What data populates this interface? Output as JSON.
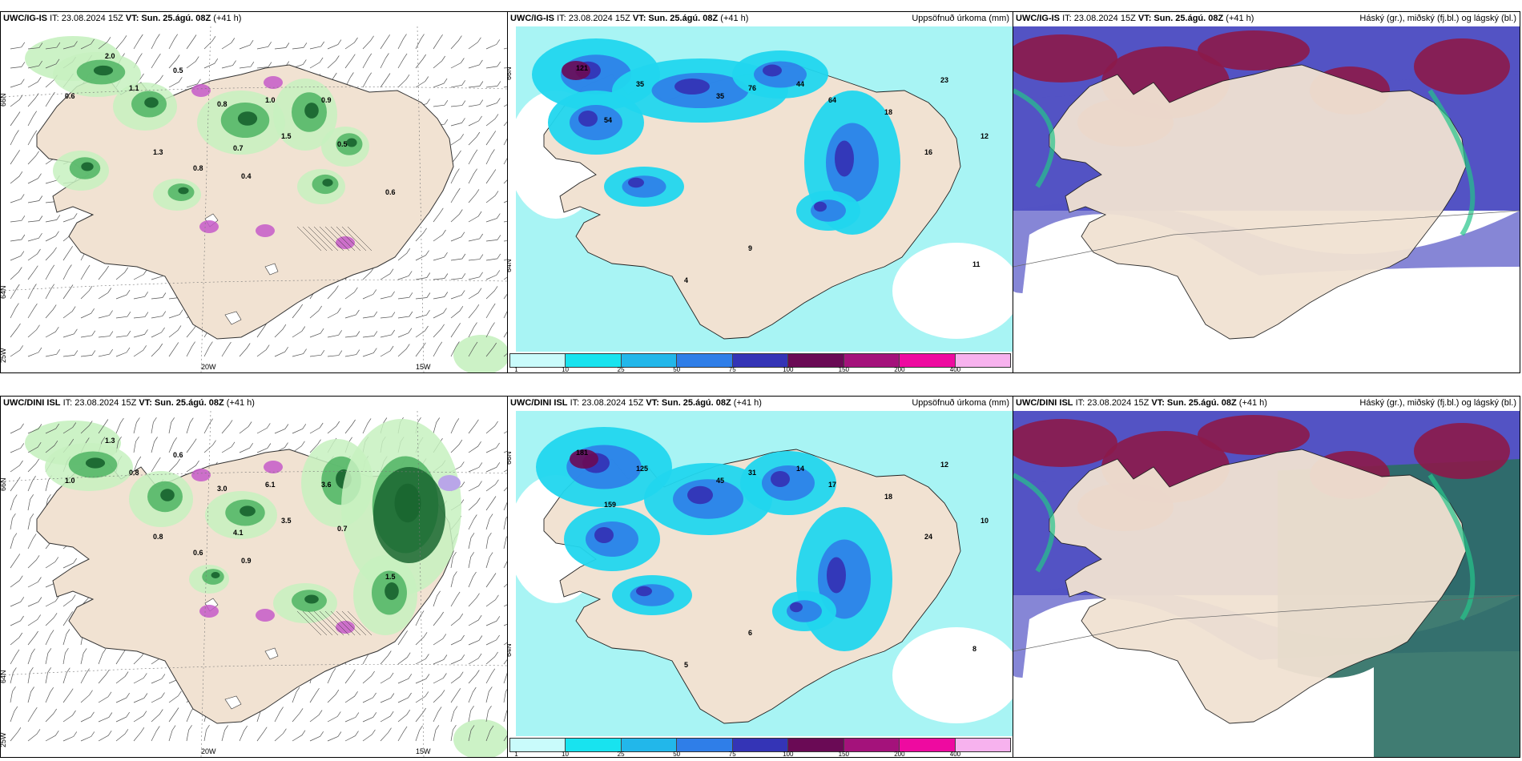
{
  "panels": [
    {
      "model": "UWC/IG-IS",
      "init": "IT: 23.08.2024 15Z",
      "valid": "VT: Sun. 25.ágú. 08Z",
      "lead": "(+41 h)",
      "subtitle": ""
    },
    {
      "model": "UWC/IG-IS",
      "init": "IT: 23.08.2024 15Z",
      "valid": "VT: Sun. 25.ágú. 08Z",
      "lead": "(+41 h)",
      "subtitle": "Uppsöfnuð úrkoma (mm)"
    },
    {
      "model": "UWC/IG-IS",
      "init": "IT: 23.08.2024 15Z",
      "valid": "VT: Sun. 25.ágú. 08Z",
      "lead": "(+41 h)",
      "subtitle": "Háský (gr.), miðský (fj.bl.) og lágský (bl.)"
    },
    {
      "model": "UWC/DINI ISL",
      "init": "IT: 23.08.2024 15Z",
      "valid": "VT: Sun. 25.ágú. 08Z",
      "lead": "(+41 h)",
      "subtitle": ""
    },
    {
      "model": "UWC/DINI ISL",
      "init": "IT: 23.08.2024 15Z",
      "valid": "VT: Sun. 25.ágú. 08Z",
      "lead": "(+41 h)",
      "subtitle": "Uppsöfnuð úrkoma (mm)"
    },
    {
      "model": "UWC/DINI ISL",
      "init": "IT: 23.08.2024 15Z",
      "valid": "VT: Sun. 25.ágú. 08Z",
      "lead": "(+41 h)",
      "subtitle": "Háský (gr.), miðský (fj.bl.) og lágský (bl.)"
    }
  ],
  "map_labels": {
    "lat66": "66N",
    "lat64": "64N",
    "lon20": "20W",
    "lon15": "15W",
    "lon25": "25W"
  },
  "wind_values_top": [
    "2.0",
    "0.5",
    "0.6",
    "1.1",
    "0.8",
    "1.0",
    "0.9",
    "0.7",
    "1.5",
    "0.5",
    "1.3",
    "0.8",
    "0.6",
    "0.4"
  ],
  "wind_values_bottom": [
    "1.3",
    "0.6",
    "1.0",
    "0.8",
    "3.0",
    "6.1",
    "3.6",
    "4.1",
    "3.5",
    "0.7",
    "0.8",
    "0.6",
    "1.5",
    "0.9"
  ],
  "precip_values_top": [
    "121",
    "35",
    "54",
    "35",
    "76",
    "44",
    "64",
    "18",
    "16",
    "23",
    "12",
    "9",
    "4",
    "11"
  ],
  "precip_values_bottom": [
    "181",
    "125",
    "159",
    "45",
    "31",
    "14",
    "17",
    "18",
    "24",
    "12",
    "10",
    "6",
    "5",
    "8"
  ],
  "colorbar": {
    "ticks": [
      "1",
      "10",
      "25",
      "50",
      "75",
      "100",
      "150",
      "200",
      "400"
    ],
    "colors": [
      "#c9fbfb",
      "#18e3ef",
      "#22b7ea",
      "#2f7ee8",
      "#3434b6",
      "#6a0a55",
      "#a4127b",
      "#ee0aa0",
      "#f7b2ee"
    ]
  },
  "colors": {
    "land": "#f1e2d2",
    "light_green": "#c7f1c0",
    "green": "#55b768",
    "dark_green": "#1a6630",
    "cyan": "#a8f4f4",
    "mid_cyan": "#21d6ee",
    "cloud_purple": "#5353c4",
    "cloud_dark_red": "#8c1a4a",
    "cloud_teal": "#2b6e63"
  }
}
